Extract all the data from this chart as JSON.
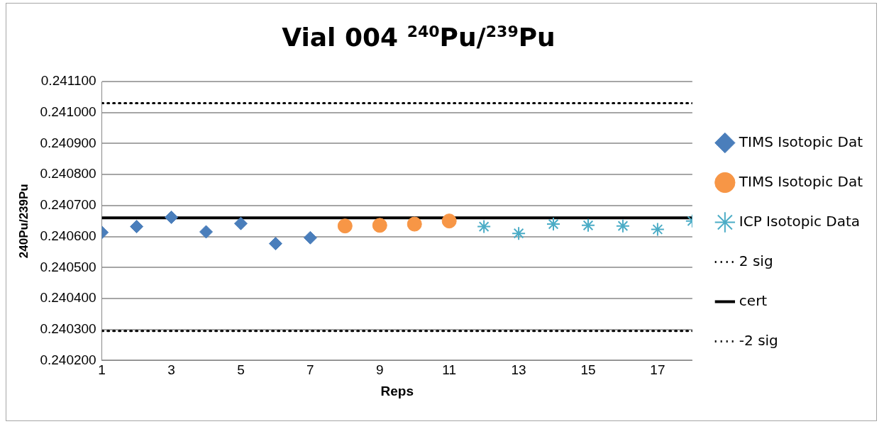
{
  "chart_data": {
    "type": "scatter",
    "title": "Vial 004 $^{240}$Pu/$^{239}$Pu",
    "xlabel": "Reps",
    "ylabel": "240Pu/239Pu",
    "xlim": [
      1,
      18
    ],
    "xticks": [
      1,
      3,
      5,
      7,
      9,
      11,
      13,
      15,
      17
    ],
    "ylim": [
      0.2402,
      0.2411
    ],
    "yticks": [
      {
        "value": 0.2402,
        "label": "0.240200"
      },
      {
        "value": 0.2403,
        "label": "0.240300"
      },
      {
        "value": 0.2404,
        "label": "0.240400"
      },
      {
        "value": 0.2405,
        "label": "0.240500"
      },
      {
        "value": 0.2406,
        "label": "0.240600"
      },
      {
        "value": 0.2407,
        "label": "0.240700"
      },
      {
        "value": 0.2408,
        "label": "0.240800"
      },
      {
        "value": 0.2409,
        "label": "0.240900"
      },
      {
        "value": 0.241,
        "label": "0.241000"
      },
      {
        "value": 0.2411,
        "label": "0.241100"
      }
    ],
    "grid": "y",
    "legend": "right",
    "series": [
      {
        "name": "TIMS Isotopic Dat",
        "marker": "diamond",
        "color": "#4a7ebb",
        "x": [
          1,
          2,
          3,
          4,
          5,
          6,
          7
        ],
        "values": [
          0.240613,
          0.240632,
          0.240662,
          0.240615,
          0.240642,
          0.240577,
          0.240596
        ]
      },
      {
        "name": "TIMS Isotopic Dat",
        "marker": "circle",
        "color": "#f79646",
        "x": [
          8,
          9,
          10,
          11
        ],
        "values": [
          0.240634,
          0.240636,
          0.24064,
          0.24065
        ]
      },
      {
        "name": "ICP Isotopic Data",
        "marker": "cross",
        "color": "#4bacc6",
        "x": [
          12,
          13,
          14,
          15,
          16,
          17,
          18
        ],
        "values": [
          0.240632,
          0.24061,
          0.24064,
          0.240636,
          0.240634,
          0.240623,
          0.24065
        ]
      },
      {
        "name": "2 sig",
        "type": "line",
        "line_style": "dotted",
        "marker": "none",
        "color": "#000000",
        "x": [
          1,
          18
        ],
        "values": [
          0.24103,
          0.24103
        ]
      },
      {
        "name": "cert",
        "type": "line",
        "line_style": "solid",
        "marker": "none",
        "color": "#000000",
        "x": [
          1,
          18
        ],
        "values": [
          0.24066,
          0.24066
        ]
      },
      {
        "name": "-2 sig",
        "type": "line",
        "line_style": "dotted",
        "marker": "none",
        "color": "#000000",
        "x": [
          1,
          18
        ],
        "values": [
          0.240295,
          0.240295
        ]
      }
    ]
  }
}
